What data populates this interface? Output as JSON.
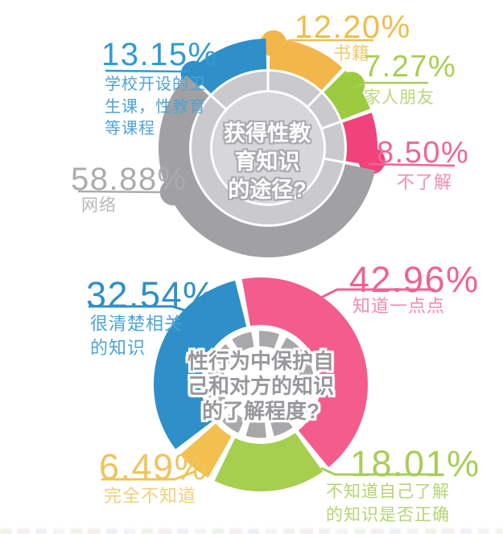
{
  "background": "#ffffff",
  "chart_data": [
    {
      "type": "donut",
      "title": "获得性教\n育知识\n的途径?",
      "title_color": "#ffffff",
      "title_outline_color": "#a9a9ae",
      "inner_ring_color": "#c9c9ce",
      "center_circle_color": "#d7d7da",
      "start_angle": 0,
      "legend_position": "callouts-around",
      "segments": [
        {
          "label": "书籍",
          "pct_label": "12.20%",
          "value": 12.2,
          "color": "#f3b64a",
          "num_color": "#edbe4d",
          "label_color": "#efca6f"
        },
        {
          "label": "家人朋友",
          "pct_label": "7.27%",
          "value": 7.27,
          "color": "#9ccb3f",
          "num_color": "#a8ce52",
          "label_color": "#bad77a"
        },
        {
          "label": "不了解",
          "pct_label": "8.50%",
          "value": 8.5,
          "color": "#f0437b",
          "num_color": "#ef6594",
          "label_color": "#f28cad"
        },
        {
          "label": "网络",
          "pct_label": "58.88%",
          "value": 58.88,
          "color": "#a1a1a4",
          "num_color": "#acacaf",
          "label_color": "#b8b8bb"
        },
        {
          "label": "学校开设的卫\n生课，性教育\n等课程",
          "pct_label": "13.15%",
          "value": 13.15,
          "color": "#2e8fc9",
          "num_color": "#2f9ad4",
          "label_color": "#4ea3d6"
        }
      ]
    },
    {
      "type": "donut",
      "title": "性行为中保护自\n己和对方的知识\n的了解程度?",
      "title_color": "#98989c",
      "title_outline_color": "#ffffff",
      "dashed_ring_color": "#a8a8ab",
      "start_angle": -12,
      "legend_position": "callouts-around",
      "segments": [
        {
          "label": "知道一点点",
          "pct_label": "42.96%",
          "value": 42.96,
          "color": "#f45c8c",
          "num_color": "#ef6294",
          "label_color": "#f28cad"
        },
        {
          "label": "不知道自己了解\n的知识是否正确",
          "pct_label": "18.01%",
          "value": 18.01,
          "color": "#a6ce4f",
          "num_color": "#a8ce55",
          "label_color": "#b5d572"
        },
        {
          "label": "完全不知道",
          "pct_label": "6.49%",
          "value": 6.49,
          "color": "#f3bf4e",
          "num_color": "#efc45b",
          "label_color": "#f2d078"
        },
        {
          "label": "很清楚相关\n的知识",
          "pct_label": "32.54%",
          "value": 32.54,
          "color": "#2e8fc9",
          "num_color": "#2e8fc9",
          "label_color": "#4ea3d6"
        }
      ]
    }
  ]
}
